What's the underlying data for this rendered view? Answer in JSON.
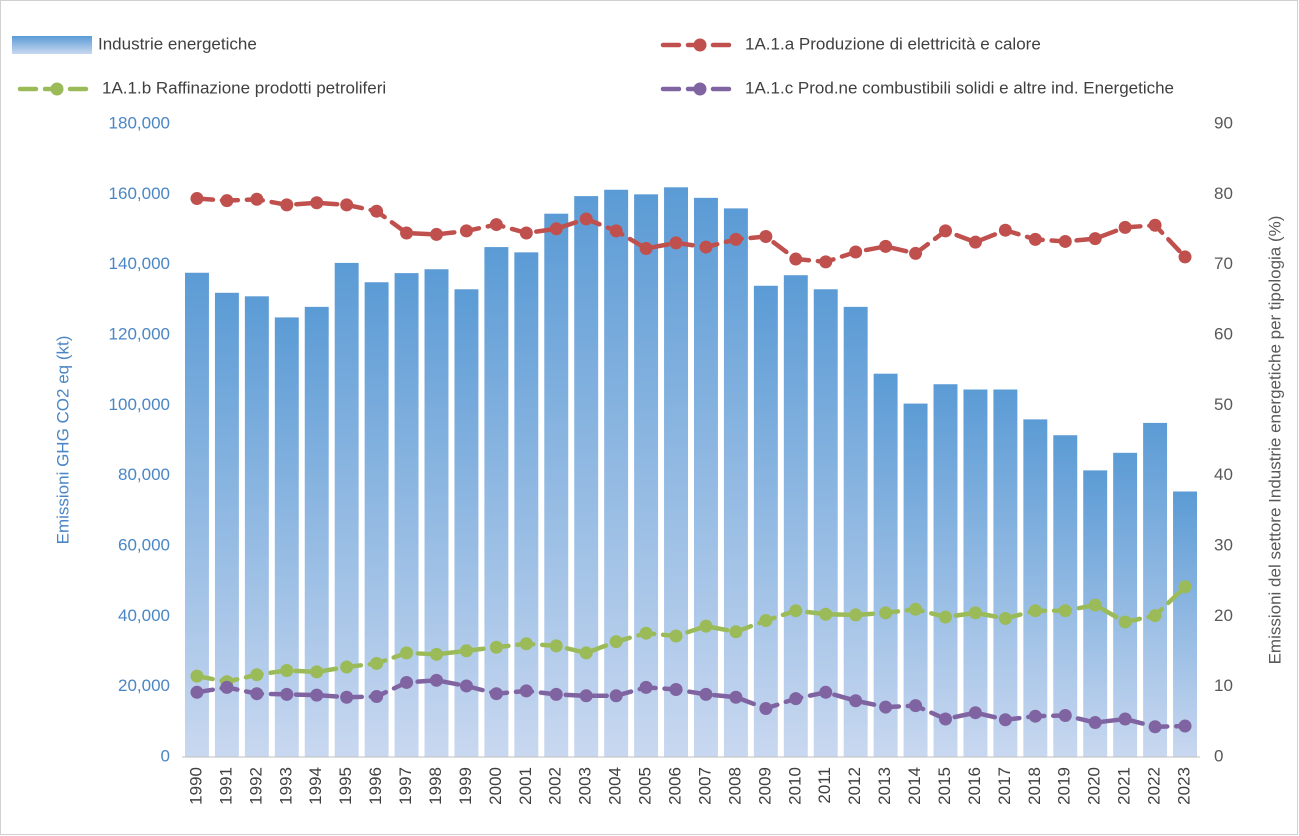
{
  "chart_data": {
    "type": "bar",
    "categories": [
      "1990",
      "1991",
      "1992",
      "1993",
      "1994",
      "1995",
      "1996",
      "1997",
      "1998",
      "1999",
      "2000",
      "2001",
      "2002",
      "2003",
      "2004",
      "2005",
      "2006",
      "2007",
      "2008",
      "2009",
      "2010",
      "2011",
      "2012",
      "2013",
      "2014",
      "2015",
      "2016",
      "2017",
      "2018",
      "2019",
      "2020",
      "2021",
      "2022",
      "2023"
    ],
    "series": [
      {
        "name": "Industrie energetiche",
        "type": "bar",
        "color": "#5b9bd5",
        "values": [
          137700,
          132000,
          131000,
          125000,
          128000,
          140500,
          135000,
          137600,
          138700,
          133000,
          145000,
          143500,
          154500,
          159500,
          161300,
          160000,
          162000,
          159000,
          156000,
          134000,
          137000,
          133000,
          128000,
          109000,
          100500,
          106000,
          104500,
          104500,
          96000,
          91500,
          81500,
          86500,
          95000,
          75500
        ]
      },
      {
        "name": "1A.1.a Produzione di elettricità e calore",
        "type": "line",
        "axis": "y2",
        "color": "#c0504d",
        "values": [
          79.4,
          79.1,
          79.3,
          78.5,
          78.8,
          78.5,
          77.6,
          74.5,
          74.3,
          74.8,
          75.7,
          74.5,
          75.1,
          76.5,
          74.8,
          72.3,
          73.1,
          72.5,
          73.6,
          74.0,
          70.8,
          70.4,
          71.8,
          72.6,
          71.6,
          74.8,
          73.2,
          74.9,
          73.6,
          73.3,
          73.7,
          75.3,
          75.6,
          71.1
        ]
      },
      {
        "name": "1A.1.b Raffinazione prodotti petroliferi",
        "type": "line",
        "axis": "y2",
        "color": "#9bbb59",
        "values": [
          11.5,
          10.7,
          11.7,
          12.3,
          12.1,
          12.8,
          13.3,
          14.8,
          14.6,
          15.1,
          15.6,
          16.1,
          15.8,
          14.8,
          16.4,
          17.6,
          17.2,
          18.6,
          17.8,
          19.4,
          20.8,
          20.3,
          20.2,
          20.5,
          21.0,
          19.9,
          20.5,
          19.7,
          20.8,
          20.8,
          21.6,
          19.2,
          20.1,
          24.2
        ]
      },
      {
        "name": "1A.1.c Prod.ne combustibili solidi e altre ind. Energetiche",
        "type": "line",
        "axis": "y2",
        "color": "#8064a2",
        "values": [
          9.2,
          9.9,
          9.0,
          8.9,
          8.8,
          8.5,
          8.6,
          10.6,
          10.9,
          10.1,
          9.0,
          9.4,
          8.9,
          8.7,
          8.7,
          9.9,
          9.6,
          8.9,
          8.5,
          6.9,
          8.3,
          9.2,
          8.0,
          7.1,
          7.3,
          5.4,
          6.3,
          5.3,
          5.8,
          5.9,
          4.9,
          5.4,
          4.3,
          4.4
        ]
      }
    ],
    "y_label": "Emissioni GHG CO2 eq (kt)",
    "y2_label": "Emissioni del settore Industrie energetiche per tipologia (%)",
    "ylim": [
      0,
      180000
    ],
    "yticks": [
      0,
      {
        "value": 20000,
        "label": "20,000"
      },
      {
        "value": 40000,
        "label": "40,000"
      },
      {
        "value": 60000,
        "label": "60,000"
      },
      {
        "value": 80000,
        "label": "80,000"
      },
      {
        "value": 100000,
        "label": "100,000"
      },
      {
        "value": 120000,
        "label": "120,000"
      },
      {
        "value": 140000,
        "label": "140,000"
      },
      {
        "value": 160000,
        "label": "160,000"
      },
      {
        "value": 180000,
        "label": "180,000"
      }
    ],
    "y2lim": [
      0,
      90
    ],
    "y2ticks": [
      0,
      10,
      20,
      30,
      40,
      50,
      60,
      70,
      80,
      90
    ],
    "grid": false
  }
}
